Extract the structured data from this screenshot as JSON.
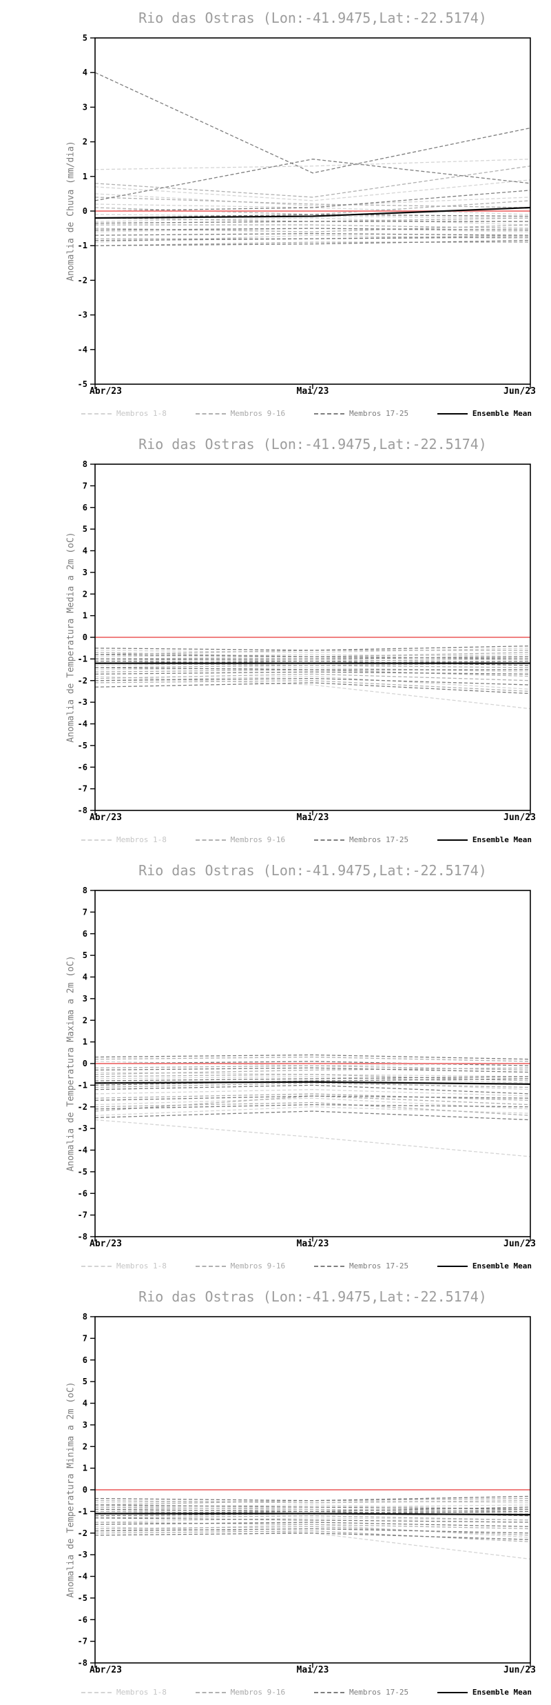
{
  "colors": {
    "title": "#9c9c9c",
    "ylabel": "#7c7c7c",
    "axis": "#000000",
    "tick_label": "#000000",
    "zero_line": "#f08080",
    "group1": "#d4d4d4",
    "group2": "#b0b0b0",
    "group3": "#7d7d7d",
    "mean": "#0a0a0a"
  },
  "legend": {
    "items": [
      {
        "label": "Membros 1-8",
        "group": "group1",
        "style": "dashed"
      },
      {
        "label": "Membros 9-16",
        "group": "group2",
        "style": "dashed"
      },
      {
        "label": "Membros 17-25",
        "group": "group3",
        "style": "dashed"
      },
      {
        "label": "Ensemble Mean",
        "group": "mean",
        "style": "solid"
      }
    ]
  },
  "chart_data": [
    {
      "type": "line",
      "title": "Rio das Ostras (Lon:-41.9475,Lat:-22.5174)",
      "ylabel": "Anomalia de Chuva (mm/dia)",
      "x_ticks": [
        "Abr/23",
        "Mai/23",
        "Jun/23"
      ],
      "ylim": [
        -5,
        5
      ],
      "ytick_step": 1,
      "zero_line": 0,
      "grid": false,
      "legend_position": "bottom",
      "series": [
        {
          "name": "Membro 1",
          "group": "group1",
          "values": [
            1.2,
            1.3,
            1.5
          ]
        },
        {
          "name": "Membro 2",
          "group": "group1",
          "values": [
            0.7,
            0.3,
            0.9
          ]
        },
        {
          "name": "Membro 3",
          "group": "group1",
          "values": [
            0.5,
            0.15,
            0.4
          ]
        },
        {
          "name": "Membro 4",
          "group": "group1",
          "values": [
            0.2,
            0.1,
            -0.1
          ]
        },
        {
          "name": "Membro 5",
          "group": "group1",
          "values": [
            -0.1,
            -0.15,
            -0.2
          ]
        },
        {
          "name": "Membro 6",
          "group": "group1",
          "values": [
            -0.3,
            -0.2,
            -0.4
          ]
        },
        {
          "name": "Membro 7",
          "group": "group1",
          "values": [
            -0.6,
            -0.5,
            -0.6
          ]
        },
        {
          "name": "Membro 8",
          "group": "group1",
          "values": [
            -0.9,
            -0.7,
            -0.8
          ]
        },
        {
          "name": "Membro 9",
          "group": "group2",
          "values": [
            0.8,
            0.4,
            1.3
          ]
        },
        {
          "name": "Membro 10",
          "group": "group2",
          "values": [
            0.4,
            0.2,
            0.1
          ]
        },
        {
          "name": "Membro 11",
          "group": "group2",
          "values": [
            0.1,
            -0.1,
            0.3
          ]
        },
        {
          "name": "Membro 12",
          "group": "group2",
          "values": [
            -0.2,
            -0.3,
            -0.2
          ]
        },
        {
          "name": "Membro 13",
          "group": "group2",
          "values": [
            -0.4,
            -0.4,
            -0.5
          ]
        },
        {
          "name": "Membro 14",
          "group": "group2",
          "values": [
            -0.5,
            -0.6,
            -0.4
          ]
        },
        {
          "name": "Membro 15",
          "group": "group2",
          "values": [
            -0.8,
            -0.8,
            -0.7
          ]
        },
        {
          "name": "Membro 16",
          "group": "group2",
          "values": [
            -1.0,
            -0.9,
            -0.9
          ]
        },
        {
          "name": "Membro 17",
          "group": "group3",
          "values": [
            4.0,
            1.1,
            2.4
          ]
        },
        {
          "name": "Membro 18",
          "group": "group3",
          "values": [
            0.3,
            1.5,
            0.8
          ]
        },
        {
          "name": "Membro 19",
          "group": "group3",
          "values": [
            0.0,
            0.1,
            0.6
          ]
        },
        {
          "name": "Membro 20",
          "group": "group3",
          "values": [
            -0.2,
            -0.1,
            -0.15
          ]
        },
        {
          "name": "Membro 21",
          "group": "group3",
          "values": [
            -0.35,
            -0.3,
            -0.3
          ]
        },
        {
          "name": "Membro 22",
          "group": "group3",
          "values": [
            -0.55,
            -0.5,
            -0.55
          ]
        },
        {
          "name": "Membro 23",
          "group": "group3",
          "values": [
            -0.7,
            -0.65,
            -0.7
          ]
        },
        {
          "name": "Membro 24",
          "group": "group3",
          "values": [
            -0.85,
            -0.8,
            -0.75
          ]
        },
        {
          "name": "Membro 25",
          "group": "group3",
          "values": [
            -1.0,
            -0.95,
            -0.85
          ]
        },
        {
          "name": "Ensemble Mean",
          "group": "mean",
          "values": [
            -0.2,
            -0.15,
            0.1
          ]
        }
      ]
    },
    {
      "type": "line",
      "title": "Rio das Ostras (Lon:-41.9475,Lat:-22.5174)",
      "ylabel": "Anomalia de Temperatura Media a 2m (oC)",
      "x_ticks": [
        "Abr/23",
        "Mai/23",
        "Jun/23"
      ],
      "ylim": [
        -8,
        8
      ],
      "ytick_step": 1,
      "zero_line": 0,
      "grid": false,
      "legend_position": "bottom",
      "series": [
        {
          "name": "Membro 1",
          "group": "group1",
          "values": [
            -0.6,
            -0.7,
            -0.5
          ]
        },
        {
          "name": "Membro 2",
          "group": "group1",
          "values": [
            -0.9,
            -0.8,
            -0.9
          ]
        },
        {
          "name": "Membro 3",
          "group": "group1",
          "values": [
            -1.1,
            -1.0,
            -1.2
          ]
        },
        {
          "name": "Membro 4",
          "group": "group1",
          "values": [
            -1.3,
            -1.2,
            -1.1
          ]
        },
        {
          "name": "Membro 5",
          "group": "group1",
          "values": [
            -1.5,
            -1.4,
            -1.6
          ]
        },
        {
          "name": "Membro 6",
          "group": "group1",
          "values": [
            -1.8,
            -2.2,
            -3.3
          ]
        },
        {
          "name": "Membro 7",
          "group": "group1",
          "values": [
            -2.0,
            -1.8,
            -2.4
          ]
        },
        {
          "name": "Membro 8",
          "group": "group1",
          "values": [
            -1.0,
            -0.9,
            -0.8
          ]
        },
        {
          "name": "Membro 9",
          "group": "group2",
          "values": [
            -0.7,
            -0.9,
            -0.7
          ]
        },
        {
          "name": "Membro 10",
          "group": "group2",
          "values": [
            -1.0,
            -1.1,
            -1.0
          ]
        },
        {
          "name": "Membro 11",
          "group": "group2",
          "values": [
            -1.2,
            -1.3,
            -1.4
          ]
        },
        {
          "name": "Membro 12",
          "group": "group2",
          "values": [
            -1.4,
            -1.3,
            -1.2
          ]
        },
        {
          "name": "Membro 13",
          "group": "group2",
          "values": [
            -1.6,
            -1.5,
            -1.8
          ]
        },
        {
          "name": "Membro 14",
          "group": "group2",
          "values": [
            -1.9,
            -1.7,
            -2.0
          ]
        },
        {
          "name": "Membro 15",
          "group": "group2",
          "values": [
            -2.1,
            -2.0,
            -2.5
          ]
        },
        {
          "name": "Membro 16",
          "group": "group2",
          "values": [
            -0.8,
            -0.6,
            -0.6
          ]
        },
        {
          "name": "Membro 17",
          "group": "group3",
          "values": [
            -0.5,
            -0.6,
            -0.4
          ]
        },
        {
          "name": "Membro 18",
          "group": "group3",
          "values": [
            -0.8,
            -0.9,
            -1.0
          ]
        },
        {
          "name": "Membro 19",
          "group": "group3",
          "values": [
            -1.0,
            -1.0,
            -0.9
          ]
        },
        {
          "name": "Membro 20",
          "group": "group3",
          "values": [
            -1.2,
            -1.1,
            -1.3
          ]
        },
        {
          "name": "Membro 21",
          "group": "group3",
          "values": [
            -1.4,
            -1.5,
            -1.5
          ]
        },
        {
          "name": "Membro 22",
          "group": "group3",
          "values": [
            -1.7,
            -1.6,
            -1.7
          ]
        },
        {
          "name": "Membro 23",
          "group": "group3",
          "values": [
            -2.0,
            -1.9,
            -2.2
          ]
        },
        {
          "name": "Membro 24",
          "group": "group3",
          "values": [
            -2.3,
            -2.1,
            -2.6
          ]
        },
        {
          "name": "Membro 25",
          "group": "group3",
          "values": [
            -1.1,
            -1.2,
            -1.1
          ]
        },
        {
          "name": "Ensemble Mean",
          "group": "mean",
          "values": [
            -1.2,
            -1.2,
            -1.2
          ]
        }
      ]
    },
    {
      "type": "line",
      "title": "Rio das Ostras (Lon:-41.9475,Lat:-22.5174)",
      "ylabel": "Anomalia de Temperatura Maxima a 2m (oC)",
      "x_ticks": [
        "Abr/23",
        "Mai/23",
        "Jun/23"
      ],
      "ylim": [
        -8,
        8
      ],
      "ytick_step": 1,
      "zero_line": 0,
      "grid": false,
      "legend_position": "bottom",
      "series": [
        {
          "name": "Membro 1",
          "group": "group1",
          "values": [
            0.1,
            -0.1,
            0.0
          ]
        },
        {
          "name": "Membro 2",
          "group": "group1",
          "values": [
            -0.4,
            -0.5,
            -0.6
          ]
        },
        {
          "name": "Membro 3",
          "group": "group1",
          "values": [
            -0.9,
            -0.8,
            -1.2
          ]
        },
        {
          "name": "Membro 4",
          "group": "group1",
          "values": [
            -1.4,
            -1.2,
            -1.5
          ]
        },
        {
          "name": "Membro 5",
          "group": "group1",
          "values": [
            -1.9,
            -1.6,
            -2.1
          ]
        },
        {
          "name": "Membro 6",
          "group": "group1",
          "values": [
            -2.4,
            -2.0,
            -2.3
          ]
        },
        {
          "name": "Membro 7",
          "group": "group1",
          "values": [
            -2.6,
            -3.4,
            -4.3
          ]
        },
        {
          "name": "Membro 8",
          "group": "group1",
          "values": [
            -0.7,
            -0.6,
            -0.9
          ]
        },
        {
          "name": "Membro 9",
          "group": "group2",
          "values": [
            0.2,
            0.3,
            0.1
          ]
        },
        {
          "name": "Membro 10",
          "group": "group2",
          "values": [
            -0.2,
            -0.1,
            -0.3
          ]
        },
        {
          "name": "Membro 11",
          "group": "group2",
          "values": [
            -0.6,
            -0.5,
            -0.8
          ]
        },
        {
          "name": "Membro 12",
          "group": "group2",
          "values": [
            -1.1,
            -0.9,
            -1.1
          ]
        },
        {
          "name": "Membro 13",
          "group": "group2",
          "values": [
            -1.6,
            -1.4,
            -1.7
          ]
        },
        {
          "name": "Membro 14",
          "group": "group2",
          "values": [
            -2.0,
            -1.8,
            -2.4
          ]
        },
        {
          "name": "Membro 15",
          "group": "group2",
          "values": [
            -2.2,
            -1.5,
            -1.9
          ]
        },
        {
          "name": "Membro 16",
          "group": "group2",
          "values": [
            -0.5,
            -0.3,
            -0.2
          ]
        },
        {
          "name": "Membro 17",
          "group": "group3",
          "values": [
            0.3,
            0.4,
            0.2
          ]
        },
        {
          "name": "Membro 18",
          "group": "group3",
          "values": [
            0.0,
            0.1,
            -0.1
          ]
        },
        {
          "name": "Membro 19",
          "group": "group3",
          "values": [
            -0.3,
            -0.2,
            -0.4
          ]
        },
        {
          "name": "Membro 20",
          "group": "group3",
          "values": [
            -0.8,
            -0.7,
            -0.6
          ]
        },
        {
          "name": "Membro 21",
          "group": "group3",
          "values": [
            -1.2,
            -1.0,
            -1.4
          ]
        },
        {
          "name": "Membro 22",
          "group": "group3",
          "values": [
            -1.7,
            -1.5,
            -1.6
          ]
        },
        {
          "name": "Membro 23",
          "group": "group3",
          "values": [
            -2.1,
            -1.9,
            -2.0
          ]
        },
        {
          "name": "Membro 24",
          "group": "group3",
          "values": [
            -2.5,
            -2.2,
            -2.6
          ]
        },
        {
          "name": "Membro 25",
          "group": "group3",
          "values": [
            -1.0,
            -0.8,
            -0.7
          ]
        },
        {
          "name": "Ensemble Mean",
          "group": "mean",
          "values": [
            -0.9,
            -0.85,
            -0.95
          ]
        }
      ]
    },
    {
      "type": "line",
      "title": "Rio das Ostras (Lon:-41.9475,Lat:-22.5174)",
      "ylabel": "Anomalia de Temperatura Minima a 2m (oC)",
      "x_ticks": [
        "Abr/23",
        "Mai/23",
        "Jun/23"
      ],
      "ylim": [
        -8,
        8
      ],
      "ytick_step": 1,
      "zero_line": 0,
      "grid": false,
      "legend_position": "bottom",
      "series": [
        {
          "name": "Membro 1",
          "group": "group1",
          "values": [
            -0.6,
            -0.5,
            -0.6
          ]
        },
        {
          "name": "Membro 2",
          "group": "group1",
          "values": [
            -0.8,
            -0.7,
            -0.9
          ]
        },
        {
          "name": "Membro 3",
          "group": "group1",
          "values": [
            -1.0,
            -0.9,
            -1.1
          ]
        },
        {
          "name": "Membro 4",
          "group": "group1",
          "values": [
            -1.2,
            -1.1,
            -1.0
          ]
        },
        {
          "name": "Membro 5",
          "group": "group1",
          "values": [
            -1.5,
            -1.3,
            -1.4
          ]
        },
        {
          "name": "Membro 6",
          "group": "group1",
          "values": [
            -1.7,
            -2.0,
            -3.2
          ]
        },
        {
          "name": "Membro 7",
          "group": "group1",
          "values": [
            -1.9,
            -1.6,
            -2.2
          ]
        },
        {
          "name": "Membro 8",
          "group": "group1",
          "values": [
            -0.9,
            -0.8,
            -0.7
          ]
        },
        {
          "name": "Membro 9",
          "group": "group2",
          "values": [
            -0.5,
            -0.6,
            -0.5
          ]
        },
        {
          "name": "Membro 10",
          "group": "group2",
          "values": [
            -0.8,
            -0.9,
            -1.0
          ]
        },
        {
          "name": "Membro 11",
          "group": "group2",
          "values": [
            -1.0,
            -1.1,
            -0.9
          ]
        },
        {
          "name": "Membro 12",
          "group": "group2",
          "values": [
            -1.3,
            -1.2,
            -1.4
          ]
        },
        {
          "name": "Membro 13",
          "group": "group2",
          "values": [
            -1.5,
            -1.6,
            -1.8
          ]
        },
        {
          "name": "Membro 14",
          "group": "group2",
          "values": [
            -1.8,
            -1.7,
            -2.1
          ]
        },
        {
          "name": "Membro 15",
          "group": "group2",
          "values": [
            -2.0,
            -1.9,
            -2.4
          ]
        },
        {
          "name": "Membro 16",
          "group": "group2",
          "values": [
            -0.7,
            -0.5,
            -0.4
          ]
        },
        {
          "name": "Membro 17",
          "group": "group3",
          "values": [
            -0.4,
            -0.5,
            -0.3
          ]
        },
        {
          "name": "Membro 18",
          "group": "group3",
          "values": [
            -0.7,
            -0.8,
            -0.9
          ]
        },
        {
          "name": "Membro 19",
          "group": "group3",
          "values": [
            -0.9,
            -1.0,
            -0.8
          ]
        },
        {
          "name": "Membro 20",
          "group": "group3",
          "values": [
            -1.1,
            -1.0,
            -1.2
          ]
        },
        {
          "name": "Membro 21",
          "group": "group3",
          "values": [
            -1.3,
            -1.4,
            -1.5
          ]
        },
        {
          "name": "Membro 22",
          "group": "group3",
          "values": [
            -1.6,
            -1.5,
            -1.7
          ]
        },
        {
          "name": "Membro 23",
          "group": "group3",
          "values": [
            -1.9,
            -1.8,
            -2.0
          ]
        },
        {
          "name": "Membro 24",
          "group": "group3",
          "values": [
            -2.1,
            -2.0,
            -2.3
          ]
        },
        {
          "name": "Membro 25",
          "group": "group3",
          "values": [
            -1.2,
            -1.1,
            -1.0
          ]
        },
        {
          "name": "Ensemble Mean",
          "group": "mean",
          "values": [
            -1.1,
            -1.1,
            -1.15
          ]
        }
      ]
    }
  ]
}
